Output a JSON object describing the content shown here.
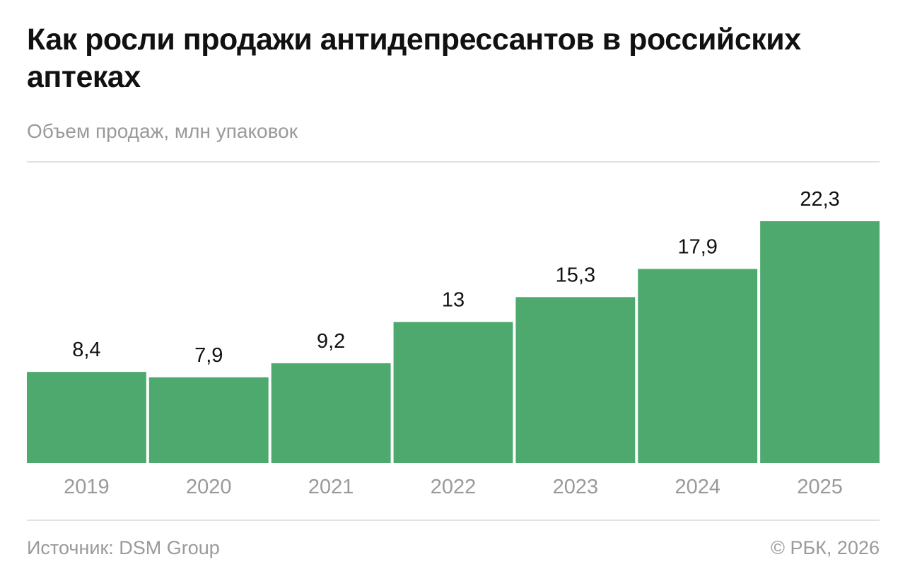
{
  "chart_data": {
    "type": "bar",
    "title": "Как росли продажи антидепрессантов в российских аптеках",
    "subtitle": "Объем продаж, млн упаковок",
    "categories": [
      "2019",
      "2020",
      "2021",
      "2022",
      "2023",
      "2024",
      "2025"
    ],
    "values": [
      8.4,
      7.9,
      9.2,
      13,
      15.3,
      17.9,
      22.3
    ],
    "data_labels": [
      "8,4",
      "7,9",
      "9,2",
      "13",
      "15,3",
      "17,9",
      "22,3"
    ],
    "xlabel": "",
    "ylabel": "",
    "grid": false,
    "bar_color": "#4ea96f"
  },
  "footer": {
    "source": "Источник: DSM Group",
    "copyright": "© РБК, 2026"
  }
}
